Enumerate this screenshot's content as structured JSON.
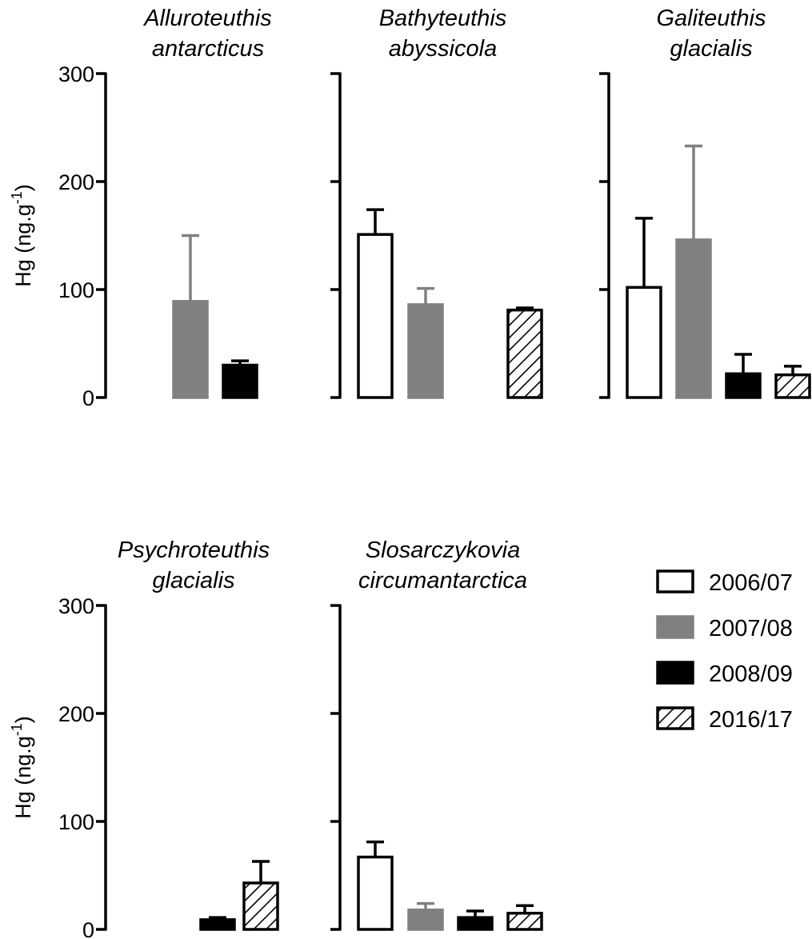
{
  "legend": [
    {
      "label": "2006/07",
      "style": "open"
    },
    {
      "label": "2007/08",
      "style": "grey"
    },
    {
      "label": "2008/09",
      "style": "black"
    },
    {
      "label": "2016/17",
      "style": "hatched"
    }
  ],
  "colors": {
    "open": "#ffffff",
    "grey": "#808080",
    "black": "#000000",
    "hatched": "#000000",
    "axis": "#000000"
  },
  "chart_data": [
    {
      "type": "bar",
      "title": [
        "Alluroteuthis",
        "antarcticus"
      ],
      "ylabel": "Hg (ng.g-1)",
      "categories": [
        "2006/07",
        "2007/08",
        "2008/09",
        "2016/17"
      ],
      "values": [
        null,
        89,
        30,
        null
      ],
      "errors": [
        null,
        61,
        4,
        null
      ],
      "ylim": [
        0,
        300
      ],
      "yticks": [
        "0",
        "100",
        "200",
        "300"
      ]
    },
    {
      "type": "bar",
      "title": [
        "Bathyteuthis",
        "abyssicola"
      ],
      "ylabel": "",
      "categories": [
        "2006/07",
        "2007/08",
        "2008/09",
        "2016/17"
      ],
      "values": [
        151,
        86,
        null,
        81
      ],
      "errors": [
        23,
        15,
        null,
        2
      ],
      "ylim": [
        0,
        300
      ],
      "yticks": []
    },
    {
      "type": "bar",
      "title": [
        "Galiteuthis",
        "glacialis"
      ],
      "ylabel": "",
      "categories": [
        "2006/07",
        "2007/08",
        "2008/09",
        "2016/17"
      ],
      "values": [
        102,
        146,
        22,
        21
      ],
      "errors": [
        64,
        87,
        18,
        8
      ],
      "ylim": [
        0,
        300
      ],
      "yticks": []
    },
    {
      "type": "bar",
      "title": [
        "Psychroteuthis",
        "glacialis"
      ],
      "ylabel": "Hg (ng.g-1)",
      "categories": [
        "2006/07",
        "2007/08",
        "2008/09",
        "2016/17"
      ],
      "values": [
        null,
        null,
        9,
        43
      ],
      "errors": [
        null,
        null,
        2,
        20
      ],
      "ylim": [
        0,
        300
      ],
      "yticks": [
        "0",
        "100",
        "200",
        "300"
      ]
    },
    {
      "type": "bar",
      "title": [
        "Slosarczykovia",
        "circumantarctica"
      ],
      "ylabel": "",
      "categories": [
        "2006/07",
        "2007/08",
        "2008/09",
        "2016/17"
      ],
      "values": [
        67,
        18,
        11,
        15
      ],
      "errors": [
        14,
        6,
        6,
        7
      ],
      "ylim": [
        0,
        300
      ],
      "yticks": []
    }
  ]
}
